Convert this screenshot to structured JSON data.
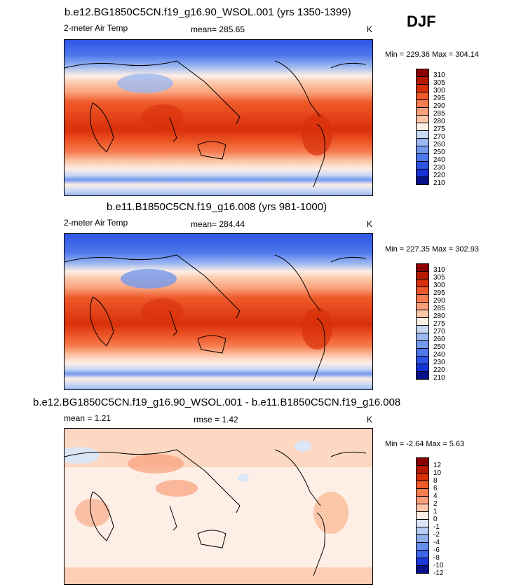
{
  "season": "DJF",
  "panels": [
    {
      "title": "b.e12.BG1850C5CN.f19_g16.90_WSOL.001 (yrs 1350-1399)",
      "variable": "2-meter Air Temp",
      "stat1": "mean= 285.65",
      "stat2": "",
      "units": "K",
      "minmax": "Min = 229.36 Max = 304.14",
      "levels": [
        "310",
        "305",
        "300",
        "295",
        "290",
        "285",
        "280",
        "275",
        "270",
        "260",
        "250",
        "240",
        "230",
        "220",
        "210"
      ],
      "colors": [
        "#8b0000",
        "#b51a00",
        "#d9300a",
        "#ef5a2a",
        "#f57d50",
        "#f9a07a",
        "#fcc6a8",
        "#fdefe6",
        "#c8d8f5",
        "#9cb8f0",
        "#7398ee",
        "#4f78ec",
        "#2e55e6",
        "#1633d6",
        "#08108a"
      ]
    },
    {
      "title": "b.e11.B1850C5CN.f19_g16.008 (yrs 981-1000)",
      "variable": "2-meter Air Temp",
      "stat1": "mean= 284.44",
      "stat2": "",
      "units": "K",
      "minmax": "Min = 227.35 Max = 302.93",
      "levels": [
        "310",
        "305",
        "300",
        "295",
        "290",
        "285",
        "280",
        "275",
        "270",
        "260",
        "250",
        "240",
        "230",
        "220",
        "210"
      ],
      "colors": [
        "#8b0000",
        "#b51a00",
        "#d9300a",
        "#ef5a2a",
        "#f57d50",
        "#f9a07a",
        "#fcc6a8",
        "#fdefe6",
        "#c8d8f5",
        "#9cb8f0",
        "#7398ee",
        "#4f78ec",
        "#2e55e6",
        "#1633d6",
        "#08108a"
      ]
    },
    {
      "title": "b.e12.BG1850C5CN.f19_g16.90_WSOL.001 - b.e11.B1850C5CN.f19_g16.008",
      "variable": "mean = 1.21",
      "stat1": "",
      "stat2": "rmse = 1.42",
      "units": "K",
      "minmax": "Min = -2.64 Max = 5.63",
      "levels": [
        "12",
        "10",
        "8",
        "6",
        "4",
        "2",
        "1",
        "0",
        "-1",
        "-2",
        "-4",
        "-6",
        "-8",
        "-10",
        "-12"
      ],
      "colors": [
        "#8b0000",
        "#b51a00",
        "#d9300a",
        "#ef5a2a",
        "#f57d50",
        "#f9a07a",
        "#fcc6a8",
        "#fdefe6",
        "#dbe7f7",
        "#b7ccf3",
        "#8eaff0",
        "#6690ee",
        "#3e66e8",
        "#1a3ad8",
        "#08108a"
      ]
    }
  ]
}
